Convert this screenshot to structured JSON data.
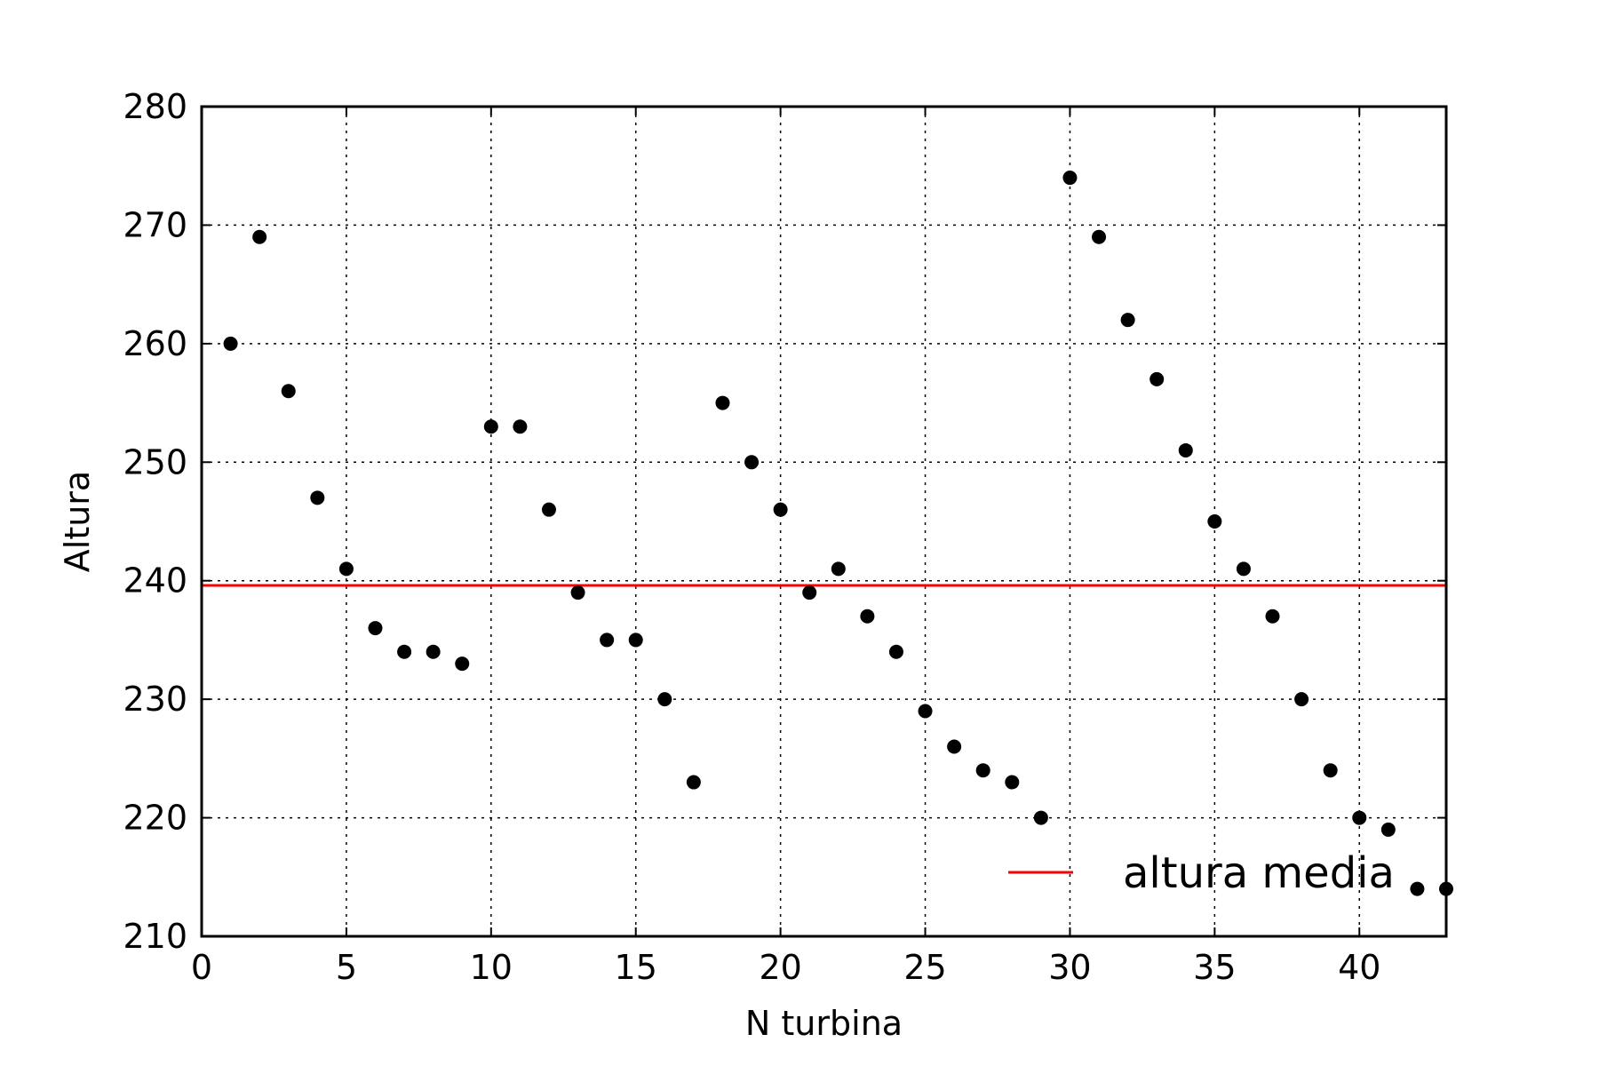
{
  "chart_data": {
    "type": "scatter",
    "title": "",
    "xlabel": "N turbina",
    "ylabel": "Altura",
    "xlim": [
      0,
      43
    ],
    "ylim": [
      210,
      280
    ],
    "xticks": [
      0,
      5,
      10,
      15,
      20,
      25,
      30,
      35,
      40
    ],
    "yticks": [
      210,
      220,
      230,
      240,
      250,
      260,
      270,
      280
    ],
    "grid": true,
    "legend_position": "lower-right",
    "series": [
      {
        "kind": "scatter",
        "color": "#000000",
        "x": [
          1,
          2,
          3,
          4,
          5,
          6,
          7,
          8,
          9,
          10,
          11,
          12,
          13,
          14,
          15,
          16,
          17,
          18,
          19,
          20,
          21,
          22,
          23,
          24,
          25,
          26,
          27,
          28,
          29,
          30,
          31,
          32,
          33,
          34,
          35,
          36,
          37,
          38,
          39,
          40,
          41,
          42,
          43
        ],
        "y": [
          260,
          269,
          256,
          247,
          241,
          236,
          234,
          234,
          233,
          253,
          253,
          246,
          239,
          235,
          235,
          230,
          223,
          255,
          250,
          246,
          239,
          241,
          237,
          234,
          229,
          226,
          224,
          223,
          220,
          274,
          269,
          262,
          257,
          251,
          245,
          241,
          237,
          230,
          224,
          220,
          219,
          214,
          214
        ]
      },
      {
        "name": "altura media",
        "kind": "hline",
        "color": "#ff0000",
        "y": 239.6
      }
    ]
  }
}
